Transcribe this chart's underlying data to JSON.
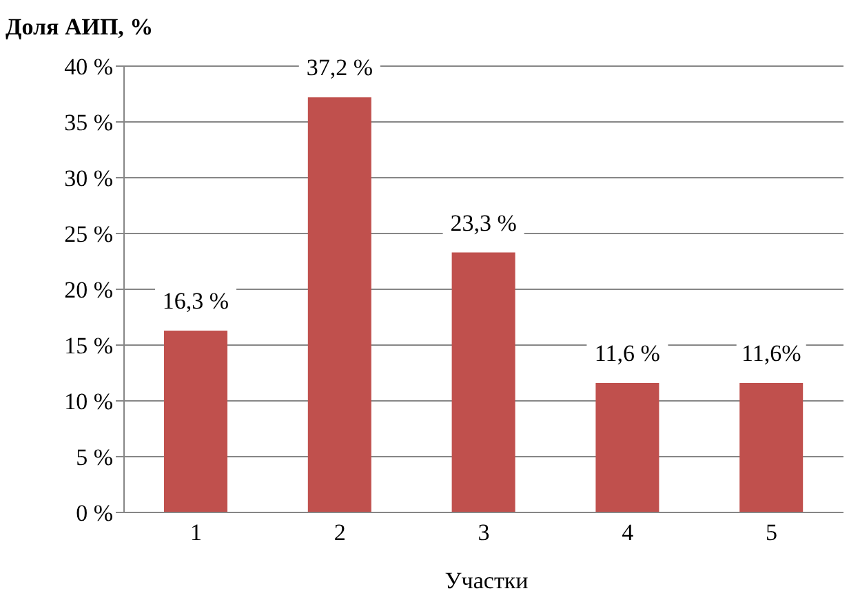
{
  "chart_data": {
    "type": "bar",
    "ylabel": "Доля АИП, %",
    "xlabel": "Участки",
    "categories": [
      "1",
      "2",
      "3",
      "4",
      "5"
    ],
    "values": [
      16.3,
      37.2,
      23.3,
      11.6,
      11.6
    ],
    "color": "#c0504d",
    "value_labels": [
      "16,3 %",
      "37,2 %",
      "23,3 %",
      "11,6 %",
      "11,6%"
    ],
    "ylim": [
      0,
      40
    ],
    "yticks": [
      {
        "value": 0,
        "label": "0 %"
      },
      {
        "value": 5,
        "label": "5 %"
      },
      {
        "value": 10,
        "label": "10 %"
      },
      {
        "value": 15,
        "label": "15 %"
      },
      {
        "value": 20,
        "label": "20 %"
      },
      {
        "value": 25,
        "label": "25 %"
      },
      {
        "value": 30,
        "label": "30 %"
      },
      {
        "value": 35,
        "label": "35 %"
      },
      {
        "value": 40,
        "label": "40 %"
      }
    ],
    "grid": "y"
  }
}
